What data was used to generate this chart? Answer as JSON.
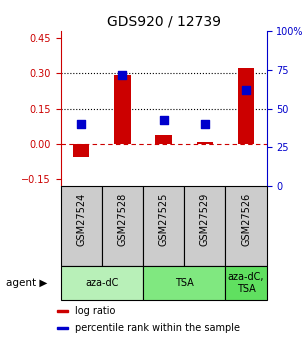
{
  "title": "GDS920 / 12739",
  "samples": [
    "GSM27524",
    "GSM27528",
    "GSM27525",
    "GSM27529",
    "GSM27526"
  ],
  "log_ratios": [
    -0.055,
    0.295,
    0.04,
    0.01,
    0.325
  ],
  "percentile_ranks": [
    40,
    72,
    43,
    40,
    62
  ],
  "agents": [
    {
      "label": "aza-dC",
      "span": [
        0,
        2
      ],
      "color": "#b8f0b8"
    },
    {
      "label": "TSA",
      "span": [
        2,
        4
      ],
      "color": "#80e880"
    },
    {
      "label": "aza-dC,\nTSA",
      "span": [
        4,
        5
      ],
      "color": "#60e060"
    }
  ],
  "ylim_left": [
    -0.18,
    0.48
  ],
  "ylim_right": [
    0,
    100
  ],
  "yticks_left": [
    -0.15,
    0,
    0.15,
    0.3,
    0.45
  ],
  "yticks_right": [
    0,
    25,
    50,
    75,
    100
  ],
  "yticklabels_right": [
    "0",
    "25",
    "50",
    "75",
    "100%"
  ],
  "hlines": [
    0.15,
    0.3
  ],
  "bar_color": "#cc0000",
  "dot_color": "#0000cc",
  "bar_width": 0.4,
  "dot_size": 40,
  "left_tick_color": "#cc0000",
  "right_tick_color": "#0000cc",
  "sample_box_color": "#cccccc",
  "legend_items": [
    {
      "color": "#cc0000",
      "label": "log ratio"
    },
    {
      "color": "#0000cc",
      "label": "percentile rank within the sample"
    }
  ],
  "tick_fontsize": 7,
  "label_fontsize": 7,
  "title_fontsize": 10
}
